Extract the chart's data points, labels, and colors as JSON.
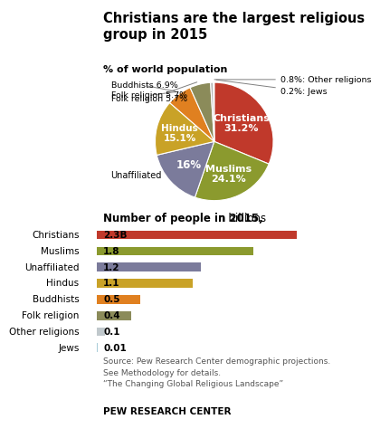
{
  "title": "Christians are the largest religious\ngroup in 2015",
  "pie_subtitle": "% of world population",
  "bar_subtitle_bold": "Number of people in 2015,",
  "bar_subtitle_regular": " in billions",
  "source_text": "Source: Pew Research Center demographic projections.\nSee Methodology for details.\n“The Changing Global Religious Landscape”",
  "footer": "PEW RESEARCH CENTER",
  "religions": [
    "Christians",
    "Muslims",
    "Unaffiliated",
    "Hindus",
    "Buddhists",
    "Folk religion",
    "Other religions",
    "Jews"
  ],
  "pie_values": [
    31.2,
    24.1,
    16.0,
    15.1,
    6.9,
    5.7,
    0.8,
    0.2
  ],
  "pie_colors": [
    "#c0392b",
    "#8b9a2e",
    "#7b7b9b",
    "#c9a227",
    "#e08020",
    "#8b8b5a",
    "#b5b5b5",
    "#c0d8e0"
  ],
  "bar_values": [
    2.3,
    1.8,
    1.2,
    1.1,
    0.5,
    0.4,
    0.1,
    0.01
  ],
  "bar_colors": [
    "#c0392b",
    "#8b9a2e",
    "#7b7b9b",
    "#c9a227",
    "#e08020",
    "#8b8b5a",
    "#c0c8cc",
    "#a8ccd8"
  ],
  "bar_labels": [
    "2.3B",
    "1.8",
    "1.2",
    "1.1",
    "0.5",
    "0.4",
    "0.1",
    "0.01"
  ],
  "background_color": "#ffffff",
  "pie_startangle": 90,
  "pie_inside_labels": [
    {
      "idx": 0,
      "text": "Christians\n31.2%",
      "color": "white",
      "fontweight": "bold"
    },
    {
      "idx": 1,
      "text": "Muslims\n24.1%",
      "color": "white",
      "fontweight": "bold"
    },
    {
      "idx": 2,
      "text": "16%",
      "color": "white",
      "fontweight": "bold"
    },
    {
      "idx": 3,
      "text": "Hindus\n15.1%",
      "color": "white",
      "fontweight": "bold"
    }
  ],
  "pie_outside_labels": [
    {
      "text": "Folk religion 5.7%",
      "side": "left",
      "arrow": true
    },
    {
      "text": "Buddhists 6.9%",
      "side": "left",
      "arrow": true
    },
    {
      "text": "0.8%: Other religions",
      "side": "right",
      "arrow": true
    },
    {
      "text": "0.2%: Jews",
      "side": "right",
      "arrow": true
    },
    {
      "text": "Unaffiliated",
      "side": "left",
      "arrow": false
    }
  ]
}
